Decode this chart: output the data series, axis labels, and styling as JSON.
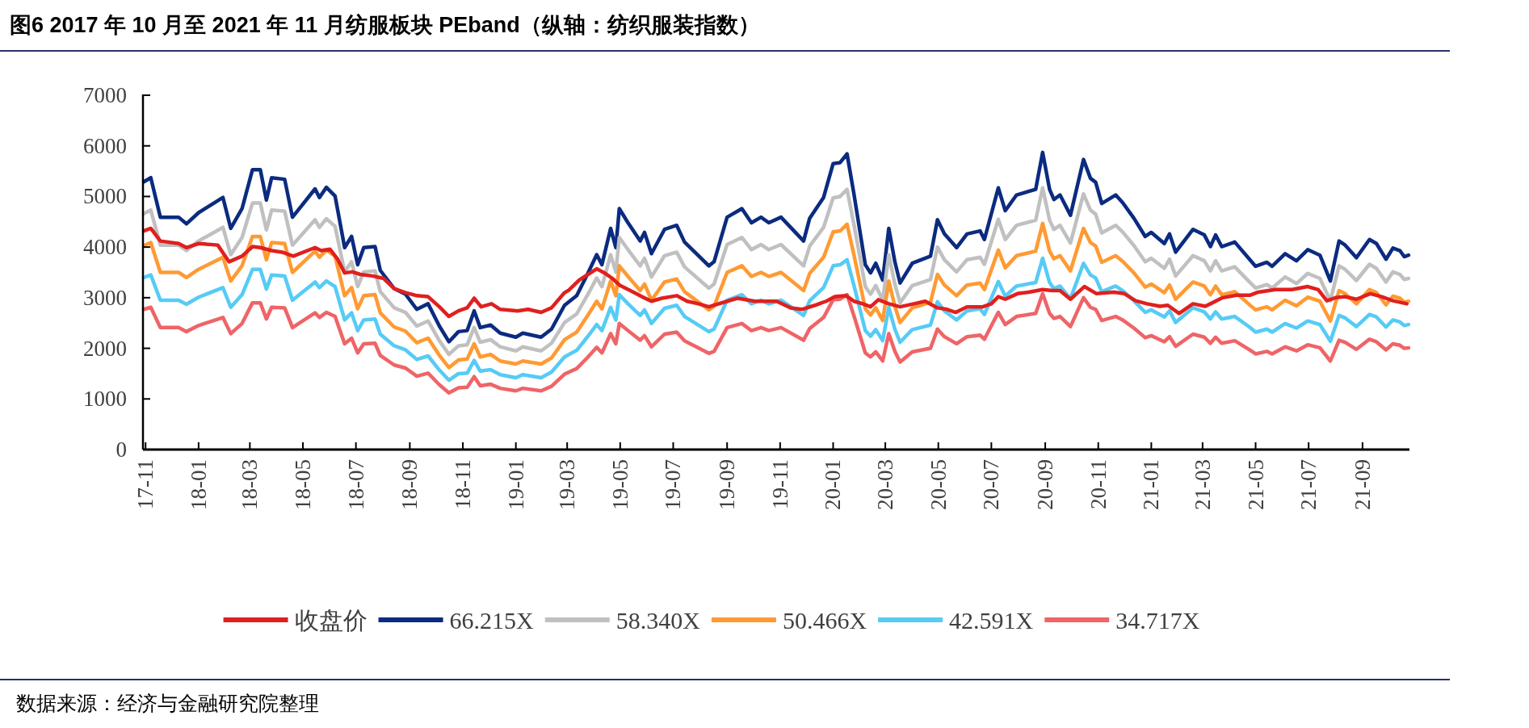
{
  "chart_data": {
    "type": "line",
    "title": "图6 2017 年 10 月至 2021 年 11 月纺服板块 PEband（纵轴：纺织服装指数）",
    "annotations": [
      "数据来源：经济与金融研究院整理"
    ],
    "x": [
      "2017-10-30",
      "2017-11-07",
      "2017-11-18",
      "2017-12-09",
      "2017-12-18",
      "2018-01-01",
      "2018-01-29",
      "2018-02-07",
      "2018-02-20",
      "2018-03-04",
      "2018-03-13",
      "2018-03-20",
      "2018-03-26",
      "2018-04-10",
      "2018-04-19",
      "2018-05-15",
      "2018-05-20",
      "2018-05-28",
      "2018-06-07",
      "2018-06-18",
      "2018-06-26",
      "2018-07-03",
      "2018-07-10",
      "2018-07-23",
      "2018-07-29",
      "2018-08-14",
      "2018-08-27",
      "2018-09-09",
      "2018-09-22",
      "2018-10-05",
      "2018-10-16",
      "2018-10-27",
      "2018-11-06",
      "2018-11-14",
      "2018-11-21",
      "2018-12-03",
      "2018-12-14",
      "2019-01-01",
      "2019-01-09",
      "2019-01-30",
      "2019-02-11",
      "2019-02-26",
      "2019-03-12",
      "2019-03-25",
      "2019-04-04",
      "2019-04-10",
      "2019-04-20",
      "2019-04-26",
      "2019-04-30",
      "2019-05-10",
      "2019-05-24",
      "2019-05-29",
      "2019-06-06",
      "2019-06-21",
      "2019-07-05",
      "2019-07-14",
      "2019-08-11",
      "2019-08-17",
      "2019-09-01",
      "2019-09-18",
      "2019-09-29",
      "2019-10-10",
      "2019-10-19",
      "2019-11-02",
      "2019-11-28",
      "2019-12-05",
      "2019-12-21",
      "2020-01-01",
      "2020-01-09",
      "2020-01-17",
      "2020-01-25",
      "2020-02-07",
      "2020-02-13",
      "2020-02-19",
      "2020-02-27",
      "2020-03-05",
      "2020-03-12",
      "2020-03-18",
      "2020-04-01",
      "2020-04-22",
      "2020-04-30",
      "2020-05-08",
      "2020-05-22",
      "2020-06-03",
      "2020-06-18",
      "2020-06-23",
      "2020-07-09",
      "2020-07-17",
      "2020-07-30",
      "2020-08-21",
      "2020-08-29",
      "2020-09-06",
      "2020-09-11",
      "2020-09-18",
      "2020-09-30",
      "2020-10-15",
      "2020-10-23",
      "2020-10-29",
      "2020-11-05",
      "2020-11-21",
      "2020-11-29",
      "2020-12-12",
      "2020-12-25",
      "2021-01-01",
      "2021-01-16",
      "2021-01-22",
      "2021-01-29",
      "2021-02-18",
      "2021-03-03",
      "2021-03-10",
      "2021-03-16",
      "2021-03-23",
      "2021-04-07",
      "2021-04-24",
      "2021-05-01",
      "2021-05-14",
      "2021-05-20",
      "2021-06-04",
      "2021-06-17",
      "2021-06-30",
      "2021-07-14",
      "2021-07-26",
      "2021-08-05",
      "2021-08-12",
      "2021-08-25",
      "2021-09-09",
      "2021-09-17",
      "2021-09-28",
      "2021-10-06",
      "2021-10-14",
      "2021-10-19",
      "2021-10-24"
    ],
    "series": [
      {
        "name": "收盘价",
        "color": "#e0201e",
        "x": [
          "2017-10-30",
          "2017-11-07",
          "2017-11-18",
          "2017-12-09",
          "2017-12-18",
          "2018-01-01",
          "2018-01-23",
          "2018-02-05",
          "2018-02-20",
          "2018-03-04",
          "2018-03-13",
          "2018-03-26",
          "2018-04-07",
          "2018-04-20",
          "2018-05-15",
          "2018-05-22",
          "2018-06-01",
          "2018-06-10",
          "2018-06-18",
          "2018-06-27",
          "2018-07-06",
          "2018-07-20",
          "2018-08-02",
          "2018-08-14",
          "2018-08-27",
          "2018-09-09",
          "2018-09-22",
          "2018-10-05",
          "2018-10-16",
          "2018-10-27",
          "2018-11-06",
          "2018-11-14",
          "2018-11-22",
          "2018-12-04",
          "2018-12-14",
          "2019-01-03",
          "2019-01-15",
          "2019-01-30",
          "2019-02-11",
          "2019-02-26",
          "2019-03-03",
          "2019-03-15",
          "2019-03-25",
          "2019-04-04",
          "2019-04-13",
          "2019-04-22",
          "2019-05-01",
          "2019-05-14",
          "2019-05-26",
          "2019-06-06",
          "2019-06-18",
          "2019-07-05",
          "2019-07-17",
          "2019-07-30",
          "2019-08-11",
          "2019-09-01",
          "2019-09-13",
          "2019-10-03",
          "2019-10-28",
          "2019-11-13",
          "2019-11-26",
          "2019-12-11",
          "2019-12-24",
          "2020-01-03",
          "2020-01-16",
          "2020-01-25",
          "2020-02-04",
          "2020-02-13",
          "2020-02-22",
          "2020-03-05",
          "2020-03-18",
          "2020-04-03",
          "2020-04-16",
          "2020-04-30",
          "2020-05-11",
          "2020-05-21",
          "2020-06-03",
          "2020-06-21",
          "2020-07-01",
          "2020-07-09",
          "2020-07-17",
          "2020-07-31",
          "2020-08-13",
          "2020-08-29",
          "2020-09-09",
          "2020-09-18",
          "2020-09-30",
          "2020-10-16",
          "2020-10-30",
          "2020-11-19",
          "2020-12-01",
          "2020-12-14",
          "2020-12-27",
          "2021-01-11",
          "2021-01-20",
          "2021-02-02",
          "2021-02-18",
          "2021-03-04",
          "2021-03-10",
          "2021-03-24",
          "2021-04-09",
          "2021-04-25",
          "2021-05-04",
          "2021-05-24",
          "2021-06-12",
          "2021-06-30",
          "2021-07-12",
          "2021-07-22",
          "2021-08-01",
          "2021-08-12",
          "2021-08-25",
          "2021-09-10",
          "2021-09-23",
          "2021-10-06",
          "2021-10-22"
        ],
        "values": [
          4320,
          4370,
          4120,
          4070,
          3990,
          4070,
          4040,
          3710,
          3820,
          4010,
          3990,
          3930,
          3900,
          3820,
          3990,
          3930,
          3960,
          3760,
          3490,
          3510,
          3460,
          3430,
          3380,
          3180,
          3100,
          3040,
          3020,
          2820,
          2630,
          2740,
          2800,
          2990,
          2820,
          2880,
          2770,
          2740,
          2770,
          2710,
          2800,
          3100,
          3150,
          3350,
          3460,
          3570,
          3490,
          3380,
          3240,
          3130,
          3020,
          2930,
          2990,
          3040,
          2930,
          2880,
          2820,
          2930,
          2990,
          2930,
          2930,
          2800,
          2770,
          2850,
          2930,
          3020,
          3040,
          2930,
          2880,
          2820,
          2960,
          2880,
          2820,
          2880,
          2930,
          2800,
          2770,
          2710,
          2820,
          2820,
          2880,
          3020,
          2970,
          3080,
          3110,
          3160,
          3140,
          3140,
          2970,
          3220,
          3080,
          3110,
          3080,
          2940,
          2880,
          2830,
          2850,
          2690,
          2880,
          2830,
          2880,
          3000,
          3050,
          3050,
          3110,
          3160,
          3160,
          3220,
          3160,
          2940,
          3000,
          3020,
          2970,
          3080,
          3020,
          2940,
          2880
        ]
      },
      {
        "name": "66.215X",
        "color": "#0b2b80",
        "values": [
          5290,
          5370,
          4590,
          4590,
          4460,
          4680,
          4980,
          4370,
          4760,
          5530,
          5530,
          4930,
          5370,
          5340,
          4590,
          5150,
          4980,
          5180,
          5010,
          3990,
          4210,
          3650,
          3990,
          4010,
          3540,
          3180,
          3070,
          2770,
          2880,
          2440,
          2130,
          2330,
          2350,
          2740,
          2410,
          2460,
          2300,
          2220,
          2300,
          2220,
          2380,
          2850,
          3040,
          3490,
          3850,
          3650,
          4370,
          3990,
          4760,
          4480,
          4120,
          4290,
          3870,
          4350,
          4430,
          4100,
          3630,
          3710,
          4590,
          4760,
          4480,
          4590,
          4480,
          4590,
          4120,
          4570,
          4980,
          5650,
          5670,
          5840,
          5040,
          3650,
          3490,
          3680,
          3350,
          4370,
          3710,
          3290,
          3680,
          3820,
          4540,
          4260,
          3990,
          4260,
          4320,
          4150,
          5170,
          4720,
          5030,
          5140,
          5870,
          5140,
          4940,
          5030,
          4630,
          5730,
          5360,
          5280,
          4860,
          5030,
          4880,
          4570,
          4210,
          4290,
          4070,
          4260,
          3900,
          4350,
          4240,
          4010,
          4240,
          4010,
          4100,
          3760,
          3620,
          3700,
          3620,
          3870,
          3730,
          3950,
          3840,
          3330,
          4120,
          4040,
          3790,
          4150,
          4070,
          3760,
          3980,
          3930,
          3810,
          3840
        ]
      },
      {
        "name": "58.340X",
        "color": "#c0c0c0",
        "values": [
          4660,
          4730,
          4040,
          4040,
          3930,
          4120,
          4390,
          3850,
          4190,
          4870,
          4870,
          4340,
          4730,
          4710,
          4040,
          4540,
          4390,
          4560,
          4410,
          3510,
          3710,
          3220,
          3510,
          3530,
          3120,
          2800,
          2710,
          2440,
          2540,
          2150,
          1880,
          2050,
          2070,
          2410,
          2120,
          2170,
          2030,
          1950,
          2030,
          1950,
          2100,
          2510,
          2680,
          3070,
          3390,
          3220,
          3850,
          3510,
          4190,
          3950,
          3630,
          3780,
          3410,
          3830,
          3900,
          3610,
          3190,
          3270,
          4050,
          4190,
          3950,
          4050,
          3950,
          4050,
          3630,
          4020,
          4390,
          4970,
          5000,
          5140,
          4440,
          3220,
          3070,
          3240,
          2950,
          3850,
          3270,
          2900,
          3240,
          3360,
          4000,
          3750,
          3510,
          3750,
          3800,
          3660,
          4550,
          4150,
          4430,
          4530,
          5170,
          4530,
          4350,
          4430,
          4080,
          5050,
          4730,
          4650,
          4280,
          4430,
          4300,
          4030,
          3710,
          3780,
          3580,
          3760,
          3430,
          3830,
          3730,
          3530,
          3730,
          3530,
          3610,
          3310,
          3190,
          3260,
          3190,
          3410,
          3280,
          3480,
          3380,
          2940,
          3630,
          3560,
          3340,
          3660,
          3580,
          3310,
          3510,
          3460,
          3360,
          3380
        ]
      },
      {
        "name": "50.466X",
        "color": "#ff9a33",
        "values": [
          4030,
          4090,
          3500,
          3500,
          3400,
          3560,
          3800,
          3330,
          3630,
          4210,
          4210,
          3750,
          4090,
          4070,
          3500,
          3920,
          3800,
          3940,
          3820,
          3040,
          3200,
          2780,
          3040,
          3060,
          2700,
          2420,
          2340,
          2110,
          2200,
          1860,
          1620,
          1770,
          1790,
          2090,
          1830,
          1880,
          1750,
          1690,
          1750,
          1690,
          1810,
          2170,
          2320,
          2660,
          2930,
          2780,
          3330,
          3040,
          3630,
          3420,
          3140,
          3270,
          2950,
          3310,
          3370,
          3120,
          2760,
          2830,
          3500,
          3630,
          3420,
          3500,
          3420,
          3500,
          3140,
          3480,
          3800,
          4300,
          4320,
          4450,
          3840,
          2780,
          2660,
          2800,
          2550,
          3330,
          2830,
          2510,
          2800,
          2910,
          3460,
          3250,
          3040,
          3250,
          3290,
          3160,
          3940,
          3590,
          3830,
          3920,
          4470,
          3920,
          3770,
          3830,
          3530,
          4370,
          4090,
          4020,
          3700,
          3830,
          3720,
          3490,
          3210,
          3270,
          3100,
          3250,
          2970,
          3310,
          3230,
          3060,
          3230,
          3060,
          3120,
          2860,
          2760,
          2820,
          2760,
          2950,
          2840,
          3010,
          2930,
          2540,
          3140,
          3080,
          2880,
          3160,
          3100,
          2860,
          3030,
          2990,
          2910,
          2930
        ]
      },
      {
        "name": "42.591X",
        "color": "#56cbf5",
        "values": [
          3400,
          3450,
          2950,
          2950,
          2870,
          3010,
          3200,
          2810,
          3060,
          3560,
          3560,
          3170,
          3450,
          3430,
          2950,
          3310,
          3200,
          3330,
          3220,
          2560,
          2700,
          2350,
          2560,
          2580,
          2280,
          2050,
          1970,
          1780,
          1850,
          1570,
          1370,
          1500,
          1510,
          1760,
          1550,
          1580,
          1480,
          1420,
          1480,
          1420,
          1530,
          1830,
          1960,
          2240,
          2470,
          2350,
          2810,
          2560,
          3060,
          2880,
          2650,
          2760,
          2490,
          2790,
          2850,
          2630,
          2330,
          2380,
          2950,
          3060,
          2880,
          2950,
          2880,
          2950,
          2650,
          2940,
          3200,
          3630,
          3650,
          3750,
          3240,
          2350,
          2240,
          2370,
          2150,
          2810,
          2380,
          2120,
          2370,
          2460,
          2920,
          2740,
          2560,
          2740,
          2780,
          2670,
          3320,
          3030,
          3230,
          3300,
          3780,
          3300,
          3180,
          3230,
          2980,
          3680,
          3450,
          3390,
          3120,
          3230,
          3140,
          2940,
          2710,
          2760,
          2620,
          2740,
          2510,
          2800,
          2720,
          2580,
          2720,
          2580,
          2630,
          2420,
          2320,
          2380,
          2320,
          2490,
          2400,
          2540,
          2470,
          2140,
          2650,
          2600,
          2430,
          2670,
          2620,
          2420,
          2560,
          2520,
          2450,
          2470
        ]
      },
      {
        "name": "34.717X",
        "color": "#ef6467",
        "values": [
          2770,
          2810,
          2410,
          2410,
          2330,
          2450,
          2610,
          2290,
          2490,
          2900,
          2900,
          2580,
          2810,
          2800,
          2410,
          2700,
          2610,
          2710,
          2630,
          2090,
          2200,
          1910,
          2090,
          2100,
          1860,
          1670,
          1610,
          1450,
          1510,
          1280,
          1120,
          1220,
          1230,
          1440,
          1260,
          1290,
          1210,
          1160,
          1210,
          1160,
          1250,
          1490,
          1600,
          1830,
          2020,
          1910,
          2290,
          2090,
          2490,
          2350,
          2160,
          2250,
          2030,
          2280,
          2320,
          2150,
          1900,
          1940,
          2410,
          2490,
          2350,
          2410,
          2350,
          2410,
          2160,
          2390,
          2610,
          2960,
          2970,
          3060,
          2640,
          1910,
          1830,
          1930,
          1750,
          2290,
          1940,
          1730,
          1930,
          2000,
          2380,
          2230,
          2090,
          2230,
          2260,
          2180,
          2710,
          2470,
          2630,
          2690,
          3080,
          2690,
          2590,
          2630,
          2430,
          3000,
          2810,
          2770,
          2550,
          2630,
          2560,
          2400,
          2210,
          2250,
          2130,
          2230,
          2040,
          2280,
          2220,
          2100,
          2220,
          2100,
          2150,
          1970,
          1890,
          1940,
          1890,
          2030,
          1950,
          2070,
          2010,
          1750,
          2160,
          2120,
          1980,
          2180,
          2130,
          1970,
          2090,
          2060,
          2000,
          2010
        ]
      }
    ],
    "xlim": [
      "2017-10-29",
      "2021-10-25"
    ],
    "xticks": [
      {
        "value": "2017-11",
        "label": "17-11"
      },
      {
        "value": "2018-01",
        "label": "18-01"
      },
      {
        "value": "2018-03",
        "label": "18-03"
      },
      {
        "value": "2018-05",
        "label": "18-05"
      },
      {
        "value": "2018-07",
        "label": "18-07"
      },
      {
        "value": "2018-09",
        "label": "18-09"
      },
      {
        "value": "2018-11",
        "label": "18-11"
      },
      {
        "value": "2019-01",
        "label": "19-01"
      },
      {
        "value": "2019-03",
        "label": "19-03"
      },
      {
        "value": "2019-05",
        "label": "19-05"
      },
      {
        "value": "2019-07",
        "label": "19-07"
      },
      {
        "value": "2019-09",
        "label": "19-09"
      },
      {
        "value": "2019-11",
        "label": "19-11"
      },
      {
        "value": "2020-01",
        "label": "20-01"
      },
      {
        "value": "2020-03",
        "label": "20-03"
      },
      {
        "value": "2020-05",
        "label": "20-05"
      },
      {
        "value": "2020-07",
        "label": "20-07"
      },
      {
        "value": "2020-09",
        "label": "20-09"
      },
      {
        "value": "2020-11",
        "label": "20-11"
      },
      {
        "value": "2021-01",
        "label": "21-01"
      },
      {
        "value": "2021-03",
        "label": "21-03"
      },
      {
        "value": "2021-05",
        "label": "21-05"
      },
      {
        "value": "2021-07",
        "label": "21-07"
      },
      {
        "value": "2021-09",
        "label": "21-09"
      }
    ],
    "ylim": [
      0,
      7000
    ],
    "yticks": [
      0,
      1000,
      2000,
      3000,
      4000,
      5000,
      6000,
      7000
    ],
    "legend": "bottom"
  }
}
